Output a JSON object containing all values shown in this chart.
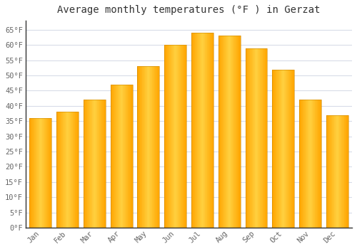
{
  "title": "Average monthly temperatures (°F ) in Gerzat",
  "months": [
    "Jan",
    "Feb",
    "Mar",
    "Apr",
    "May",
    "Jun",
    "Jul",
    "Aug",
    "Sep",
    "Oct",
    "Nov",
    "Dec"
  ],
  "values": [
    36,
    38,
    42,
    47,
    53,
    60,
    64,
    63,
    59,
    52,
    42,
    37
  ],
  "bar_color_center": "#FFD040",
  "bar_color_edge": "#FFA500",
  "background_color": "#FFFFFF",
  "plot_bg_color": "#FFFFFF",
  "grid_color": "#D8DCE8",
  "title_fontsize": 10,
  "tick_fontsize": 7.5,
  "ylim": [
    0,
    68
  ],
  "yticks": [
    0,
    5,
    10,
    15,
    20,
    25,
    30,
    35,
    40,
    45,
    50,
    55,
    60,
    65
  ]
}
